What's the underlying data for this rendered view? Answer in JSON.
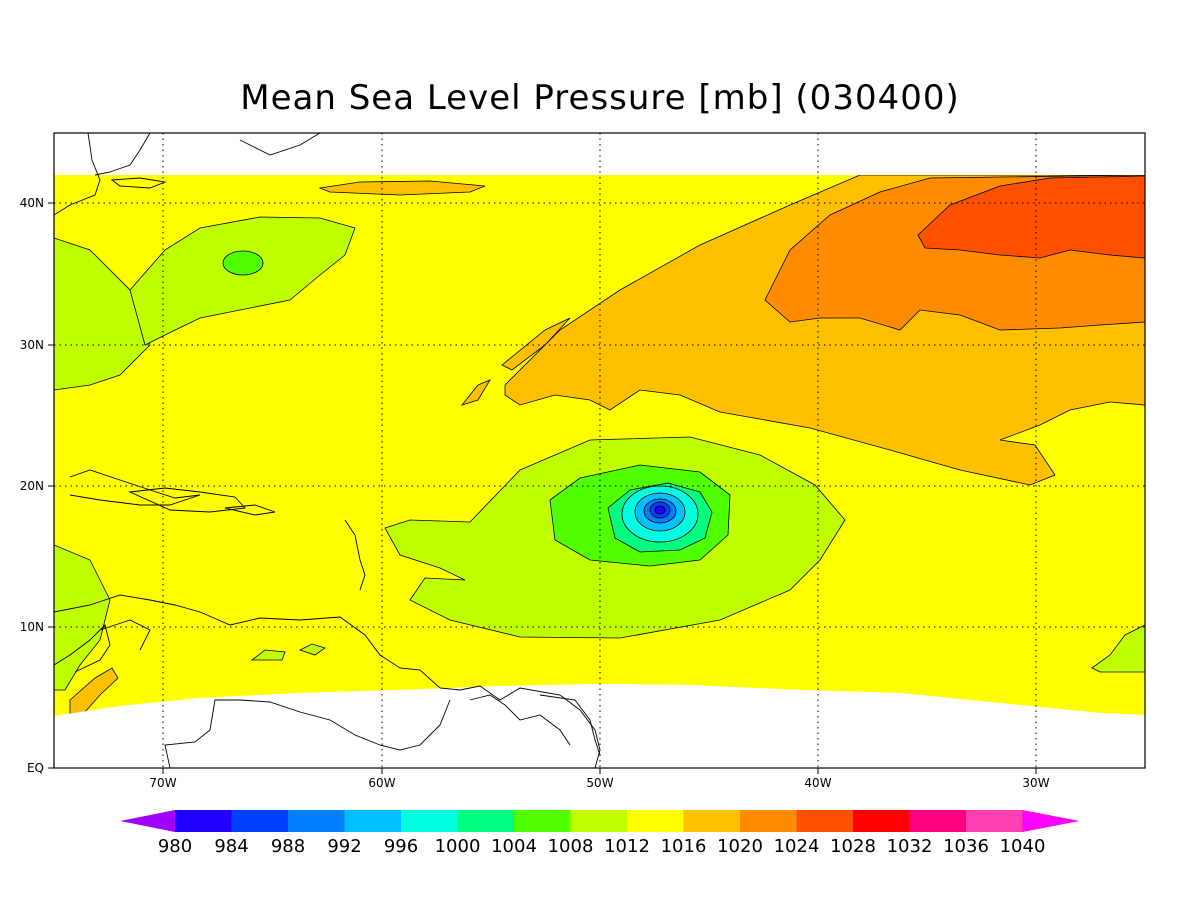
{
  "title": "Mean Sea Level Pressure [mb] (030400)",
  "map": {
    "lon_labels": [
      "70W",
      "60W",
      "50W",
      "40W",
      "30W"
    ],
    "lat_labels": [
      "40N",
      "30N",
      "20N",
      "10N",
      "EQ"
    ],
    "lon_range": [
      -75,
      -25
    ],
    "lat_range": [
      0,
      45
    ],
    "grid": "dotted"
  },
  "colorbar": {
    "levels": [
      "980",
      "984",
      "988",
      "992",
      "996",
      "1000",
      "1004",
      "1008",
      "1012",
      "1016",
      "1020",
      "1024",
      "1028",
      "1032",
      "1036",
      "1040"
    ],
    "colors": [
      "#a000ff",
      "#2000ff",
      "#0040ff",
      "#0080ff",
      "#00c0ff",
      "#00ffe0",
      "#00ff80",
      "#50ff00",
      "#c0ff00",
      "#ffff00",
      "#ffc000",
      "#ff8c00",
      "#ff5000",
      "#ff0000",
      "#ff0080",
      "#ff40b0",
      "#ff00ff"
    ]
  },
  "features": {
    "storm_center": {
      "lon": -47.3,
      "lat": 18.3,
      "min_pressure_band": "980"
    }
  }
}
